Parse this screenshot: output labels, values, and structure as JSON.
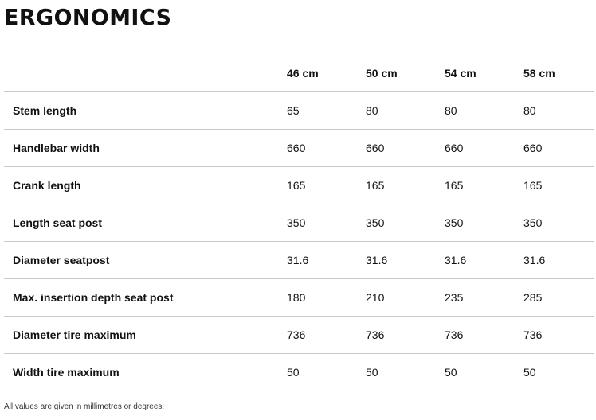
{
  "title": "ERGONOMICS",
  "table": {
    "corner_label": "",
    "columns": [
      "46 cm",
      "50 cm",
      "54 cm",
      "58 cm"
    ],
    "rows": [
      {
        "label": "Stem length",
        "values": [
          "65",
          "80",
          "80",
          "80"
        ]
      },
      {
        "label": "Handlebar width",
        "values": [
          "660",
          "660",
          "660",
          "660"
        ]
      },
      {
        "label": "Crank length",
        "values": [
          "165",
          "165",
          "165",
          "165"
        ]
      },
      {
        "label": "Length seat post",
        "values": [
          "350",
          "350",
          "350",
          "350"
        ]
      },
      {
        "label": "Diameter seatpost",
        "values": [
          "31.6",
          "31.6",
          "31.6",
          "31.6"
        ]
      },
      {
        "label": "Max. insertion depth seat post",
        "values": [
          "180",
          "210",
          "235",
          "285"
        ]
      },
      {
        "label": "Diameter tire maximum",
        "values": [
          "736",
          "736",
          "736",
          "736"
        ]
      },
      {
        "label": "Width tire maximum",
        "values": [
          "50",
          "50",
          "50",
          "50"
        ]
      }
    ]
  },
  "footnote": "All values are given in millimetres or degrees."
}
